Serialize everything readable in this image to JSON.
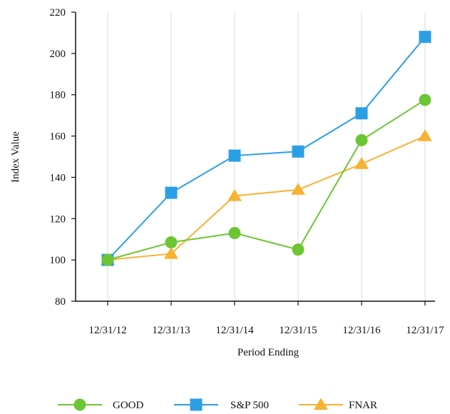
{
  "chart_data": {
    "type": "line",
    "categories": [
      "12/31/12",
      "12/31/13",
      "12/31/14",
      "12/31/15",
      "12/31/16",
      "12/31/17"
    ],
    "series": [
      {
        "name": "GOOD",
        "values": [
          100,
          108.5,
          113,
          105,
          158,
          177.5
        ],
        "color": "#6cc633",
        "marker": "circle"
      },
      {
        "name": "S&P 500",
        "values": [
          100,
          132.5,
          150.5,
          152.5,
          171,
          208
        ],
        "color": "#2b9fe6",
        "marker": "square"
      },
      {
        "name": "FNAR",
        "values": [
          100,
          103,
          131,
          134,
          146.5,
          160
        ],
        "color": "#f7b233",
        "marker": "triangle"
      }
    ],
    "xlabel": "Period Ending",
    "ylabel": "Index Value",
    "ylim": [
      80,
      220
    ],
    "yticks": [
      80,
      100,
      120,
      140,
      160,
      180,
      200,
      220
    ],
    "grid": "vertical",
    "legend_position": "bottom"
  }
}
